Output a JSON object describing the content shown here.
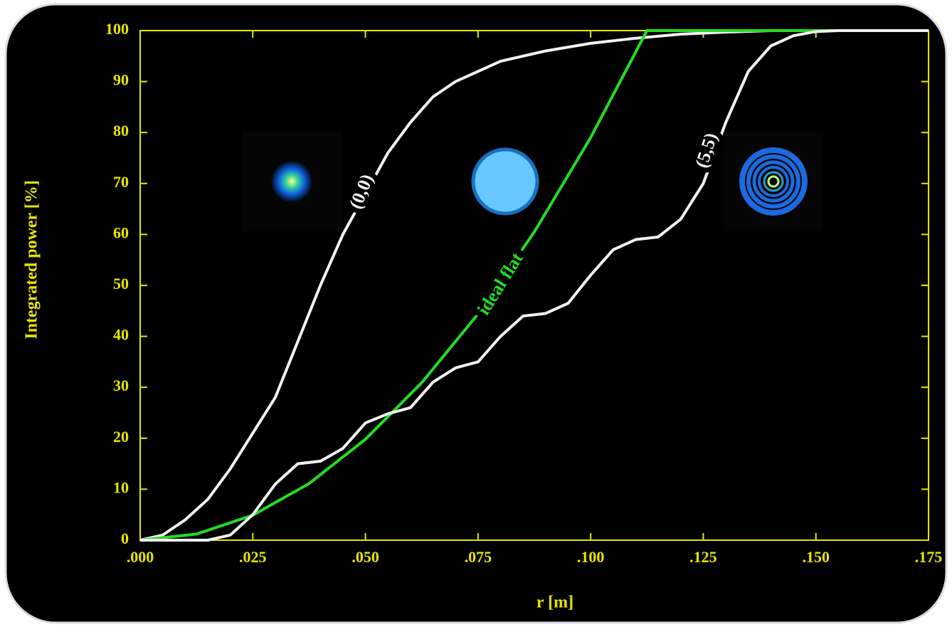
{
  "chart_data": {
    "type": "line",
    "xlabel": "r [m]",
    "ylabel": "Integrated power [%]",
    "xlim": [
      0,
      0.175
    ],
    "ylim": [
      0,
      100
    ],
    "xticks": [
      {
        "value": 0,
        "label": ".000"
      },
      {
        "value": 0.025,
        "label": ".025"
      },
      {
        "value": 0.05,
        "label": ".050"
      },
      {
        "value": 0.075,
        "label": ".075"
      },
      {
        "value": 0.1,
        "label": ".100"
      },
      {
        "value": 0.125,
        "label": ".125"
      },
      {
        "value": 0.15,
        "label": ".150"
      },
      {
        "value": 0.175,
        "label": ".175"
      }
    ],
    "yticks": [
      0,
      10,
      20,
      30,
      40,
      50,
      60,
      70,
      80,
      90,
      100
    ],
    "axis_color": "#e6e600",
    "series": [
      {
        "name": "(0,0)",
        "color": "#f2f2f2",
        "x": [
          0,
          0.005,
          0.01,
          0.015,
          0.02,
          0.025,
          0.03,
          0.035,
          0.04,
          0.045,
          0.05,
          0.055,
          0.06,
          0.065,
          0.07,
          0.08,
          0.09,
          0.1,
          0.11,
          0.12,
          0.13,
          0.14,
          0.175
        ],
        "values": [
          0,
          1,
          4,
          8,
          14,
          21,
          28,
          39,
          50,
          60,
          68,
          76,
          82,
          87,
          90,
          94,
          96,
          97.5,
          98.5,
          99.3,
          99.7,
          100,
          100
        ]
      },
      {
        "name": "ideal flat",
        "color": "#22dd22",
        "x": [
          0,
          0.0125,
          0.025,
          0.0375,
          0.05,
          0.0625,
          0.075,
          0.0875,
          0.1,
          0.1125,
          0.175
        ],
        "values": [
          0,
          1.2,
          4.9,
          11.1,
          19.8,
          30.9,
          44.4,
          60.5,
          79.0,
          100,
          100
        ]
      },
      {
        "name": "(5,5)",
        "color": "#f2f2f2",
        "x": [
          0,
          0.015,
          0.02,
          0.025,
          0.03,
          0.035,
          0.04,
          0.045,
          0.05,
          0.055,
          0.06,
          0.065,
          0.07,
          0.075,
          0.08,
          0.085,
          0.09,
          0.095,
          0.1,
          0.105,
          0.11,
          0.115,
          0.12,
          0.125,
          0.13,
          0.135,
          0.14,
          0.145,
          0.15,
          0.155,
          0.175
        ],
        "values": [
          0,
          0,
          1,
          5,
          11,
          15,
          15.5,
          18,
          23,
          24.8,
          26,
          31,
          33.8,
          35,
          40,
          44,
          44.5,
          46.5,
          52,
          57,
          59,
          59.5,
          63,
          70,
          82,
          92,
          97,
          99,
          99.8,
          100,
          100
        ]
      }
    ]
  }
}
